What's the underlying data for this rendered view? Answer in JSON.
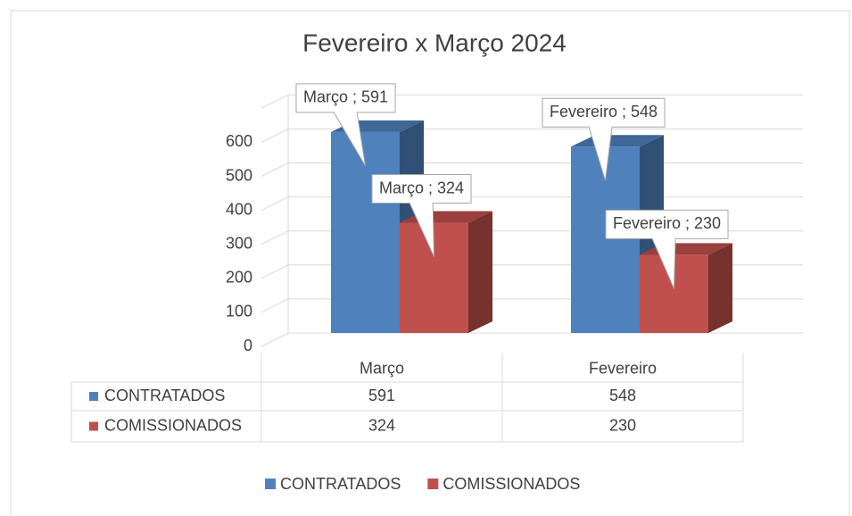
{
  "chart_data": {
    "type": "bar3d",
    "title": "Fevereiro x Março 2024",
    "categories": [
      "Março",
      "Fevereiro"
    ],
    "series": [
      {
        "name": "CONTRATADOS",
        "color": "#4f81bd",
        "values": [
          591,
          548
        ],
        "value_labels": [
          "Março ; 591",
          "Fevereiro ; 548"
        ]
      },
      {
        "name": "COMISSIONADOS",
        "color": "#c0504d",
        "values": [
          324,
          230
        ],
        "value_labels": [
          "Março ; 324",
          "Fevereiro ; 230"
        ]
      }
    ],
    "ylim": [
      0,
      700
    ],
    "yticks": [
      0,
      100,
      200,
      300,
      400,
      500,
      600
    ],
    "grid": true,
    "data_table": true,
    "legend": "bottom"
  }
}
